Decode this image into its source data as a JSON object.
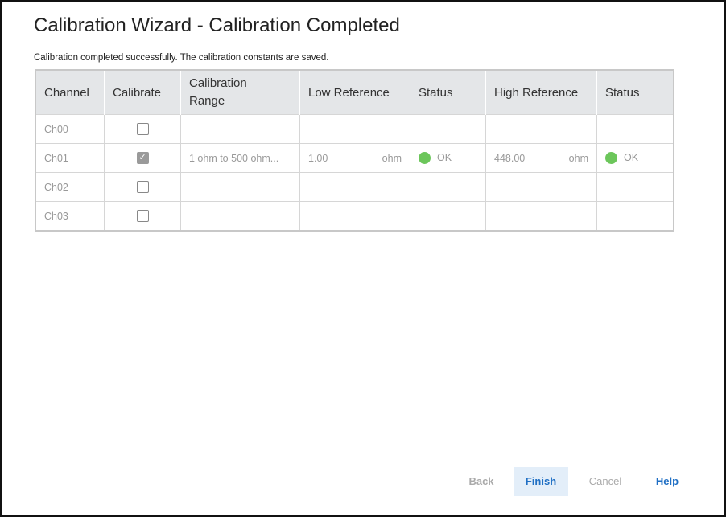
{
  "title": "Calibration Wizard -  Calibration Completed",
  "message": "Calibration completed successfully. The calibration constants are saved.",
  "table": {
    "headers": [
      "Channel",
      "Calibrate",
      "Calibration Range",
      "Low Reference",
      "Status",
      "High Reference",
      "Status"
    ],
    "rows": [
      {
        "channel": "Ch00",
        "calibrate": false
      },
      {
        "channel": "Ch01",
        "calibrate": true,
        "range": "1 ohm to 500 ohm...",
        "low_value": "1.00",
        "low_unit": "ohm",
        "low_status": "OK",
        "high_value": "448.00",
        "high_unit": "ohm",
        "high_status": "OK"
      },
      {
        "channel": "Ch02",
        "calibrate": false
      },
      {
        "channel": "Ch03",
        "calibrate": false
      }
    ]
  },
  "status_color": "#6cc65b",
  "buttons": {
    "back": "Back",
    "finish": "Finish",
    "cancel": "Cancel",
    "help": "Help"
  }
}
